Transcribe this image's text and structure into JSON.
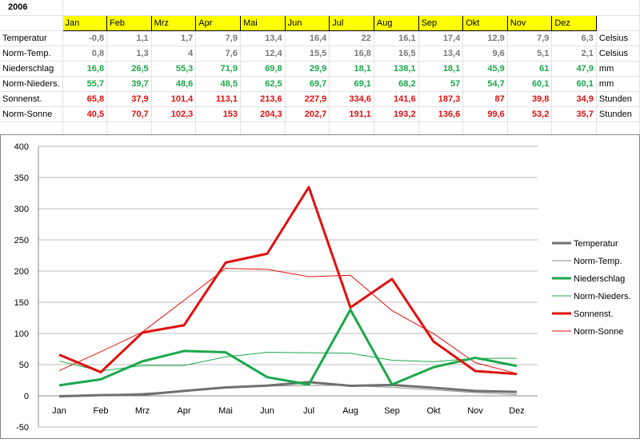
{
  "sheet": {
    "year": "2006",
    "months": [
      "Jan",
      "Feb",
      "Mrz",
      "Apr",
      "Mai",
      "Jun",
      "Jul",
      "Aug",
      "Sep",
      "Okt",
      "Nov",
      "Dez"
    ],
    "rows": [
      {
        "label": "Temperatur",
        "values": [
          "-0,8",
          "1,1",
          "1,7",
          "7,9",
          "13,4",
          "16,4",
          "22",
          "16,1",
          "17,4",
          "12,9",
          "7,9",
          "6,3"
        ],
        "unit": "Celsius",
        "color": "#777777"
      },
      {
        "label": "Norm-Temp.",
        "values": [
          "0,8",
          "1,3",
          "4",
          "7,6",
          "12,4",
          "15,5",
          "16,8",
          "16,5",
          "13,4",
          "9,6",
          "5,1",
          "2,1"
        ],
        "unit": "Celsius",
        "color": "#777777"
      },
      {
        "label": "Niederschlag",
        "values": [
          "16,8",
          "26,5",
          "55,3",
          "71,9",
          "69,8",
          "29,9",
          "18,1",
          "138,1",
          "18,1",
          "45,9",
          "61",
          "47,9"
        ],
        "unit": "mm",
        "color": "#1aa84a"
      },
      {
        "label": "Norm-Nieders.",
        "values": [
          "55,7",
          "39,7",
          "48,6",
          "48,5",
          "62,5",
          "69,7",
          "69,1",
          "68,2",
          "57",
          "54,7",
          "60,1",
          "60,1"
        ],
        "unit": "mm",
        "color": "#1aa84a"
      },
      {
        "label": "Sonnenst.",
        "values": [
          "65,8",
          "37,9",
          "101,4",
          "113,1",
          "213,6",
          "227,9",
          "334,6",
          "141,6",
          "187,3",
          "87",
          "39,8",
          "34,9"
        ],
        "unit": "Stunden",
        "color": "#e01010"
      },
      {
        "label": "Norm-Sonne",
        "values": [
          "40,5",
          "70,7",
          "102,3",
          "153",
          "204,3",
          "202,7",
          "191,1",
          "193,2",
          "136,6",
          "99,6",
          "53,2",
          "35,7"
        ],
        "unit": "Stunden",
        "color": "#e01010"
      }
    ]
  },
  "chart_data": {
    "type": "line",
    "categories": [
      "Jan",
      "Feb",
      "Mrz",
      "Apr",
      "Mai",
      "Jun",
      "Jul",
      "Aug",
      "Sep",
      "Okt",
      "Nov",
      "Dez"
    ],
    "ylim": [
      -50,
      400
    ],
    "yticks": [
      "400",
      "350",
      "300",
      "250",
      "200",
      "150",
      "100",
      "50",
      "0",
      "-50"
    ],
    "ytick_values": [
      400,
      350,
      300,
      250,
      200,
      150,
      100,
      50,
      0,
      -50
    ],
    "grid": true,
    "legend_position": "right",
    "series": [
      {
        "name": "Temperatur",
        "values": [
          -0.8,
          1.1,
          1.7,
          7.9,
          13.4,
          16.4,
          22,
          16.1,
          17.4,
          12.9,
          7.9,
          6.3
        ],
        "color": "#707070",
        "width": 3
      },
      {
        "name": "Norm-Temp.",
        "values": [
          0.8,
          1.3,
          4,
          7.6,
          12.4,
          15.5,
          16.8,
          16.5,
          13.4,
          9.6,
          5.1,
          2.1
        ],
        "color": "#909090",
        "width": 1
      },
      {
        "name": "Niederschlag",
        "values": [
          16.8,
          26.5,
          55.3,
          71.9,
          69.8,
          29.9,
          18.1,
          138.1,
          18.1,
          45.9,
          61,
          47.9
        ],
        "color": "#1aa84a",
        "width": 3
      },
      {
        "name": "Norm-Nieders.",
        "values": [
          55.7,
          39.7,
          48.6,
          48.5,
          62.5,
          69.7,
          69.1,
          68.2,
          57,
          54.7,
          60.1,
          60.1
        ],
        "color": "#1aa84a",
        "width": 1
      },
      {
        "name": "Sonnenst.",
        "values": [
          65.8,
          37.9,
          101.4,
          113.1,
          213.6,
          227.9,
          334.6,
          141.6,
          187.3,
          87,
          39.8,
          34.9
        ],
        "color": "#e01010",
        "width": 3
      },
      {
        "name": "Norm-Sonne",
        "values": [
          40.5,
          70.7,
          102.3,
          153,
          204.3,
          202.7,
          191.1,
          193.2,
          136.6,
          99.6,
          53.2,
          35.7
        ],
        "color": "#e01010",
        "width": 1
      }
    ]
  }
}
